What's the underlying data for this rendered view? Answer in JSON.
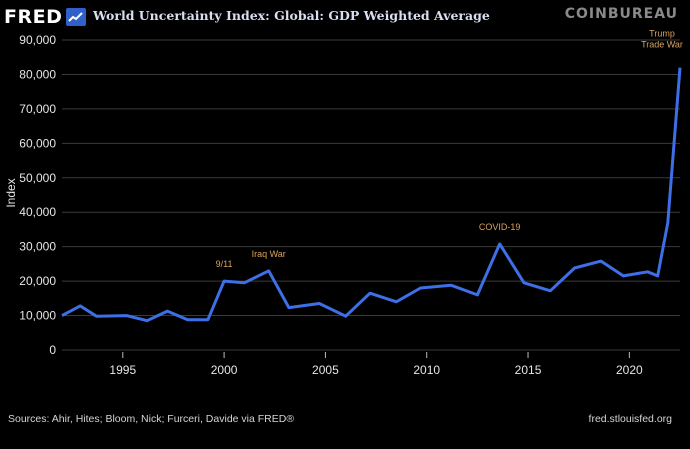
{
  "header": {
    "logo_text": "FRED",
    "title": "World Uncertainty Index: Global: GDP Weighted Average",
    "brand": "COINBUREAU"
  },
  "footer": {
    "source": "Sources: Ahir, Hites; Bloom, Nick; Furceri, Davide via FRED®",
    "site": "fred.stlouisfed.org"
  },
  "colors": {
    "background": "#000000",
    "line": "#3d6fe6",
    "annotation": "#d9a35c",
    "grid": "#3a3a3a"
  },
  "chart_data": {
    "type": "line",
    "title": "World Uncertainty Index: Global: GDP Weighted Average",
    "xlabel": "",
    "ylabel": "Index",
    "xlim": [
      1992,
      2022.5
    ],
    "ylim": [
      0,
      90000
    ],
    "x_ticks": [
      1995,
      2000,
      2005,
      2010,
      2015,
      2020
    ],
    "y_ticks": [
      {
        "value": 0,
        "label": "0"
      },
      {
        "value": 10000,
        "label": "10,000"
      },
      {
        "value": 20000,
        "label": "20,000"
      },
      {
        "value": 30000,
        "label": "30,000"
      },
      {
        "value": 40000,
        "label": "40,000"
      },
      {
        "value": 50000,
        "label": "50,000"
      },
      {
        "value": 60000,
        "label": "60,000"
      },
      {
        "value": 70000,
        "label": "70,000"
      },
      {
        "value": 80000,
        "label": "80,000"
      },
      {
        "value": 90000,
        "label": "90,000"
      }
    ],
    "grid": true,
    "series": [
      {
        "values": [
          [
            1992.0,
            10000
          ],
          [
            1992.9,
            12800
          ],
          [
            1993.7,
            9800
          ],
          [
            1995.2,
            10000
          ],
          [
            1996.2,
            8500
          ],
          [
            1997.2,
            11300
          ],
          [
            1998.2,
            8800
          ],
          [
            1999.2,
            8800
          ],
          [
            2000.0,
            20000
          ],
          [
            2001.0,
            19500
          ],
          [
            2002.2,
            23000
          ],
          [
            2003.2,
            12300
          ],
          [
            2004.7,
            13500
          ],
          [
            2006.0,
            9800
          ],
          [
            2007.2,
            16500
          ],
          [
            2008.5,
            14000
          ],
          [
            2009.7,
            18000
          ],
          [
            2011.2,
            18800
          ],
          [
            2012.5,
            16000
          ],
          [
            2013.6,
            30800
          ],
          [
            2014.8,
            19500
          ],
          [
            2016.1,
            17200
          ],
          [
            2017.3,
            23800
          ],
          [
            2018.6,
            25800
          ],
          [
            2019.7,
            21500
          ],
          [
            2020.9,
            22700
          ],
          [
            2021.4,
            21500
          ],
          [
            2021.9,
            37000
          ],
          [
            2022.5,
            82000
          ]
        ]
      }
    ],
    "annotations": [
      {
        "text": "9/11",
        "x": 2000.0,
        "y": 20000
      },
      {
        "text": "Iraq War",
        "x": 2002.2,
        "y": 23000
      },
      {
        "text": "COVID-19",
        "x": 2013.6,
        "y": 30800
      },
      {
        "lines": [
          "Trump",
          "Trade War"
        ],
        "x": 2022.5,
        "y": 82000
      }
    ]
  }
}
